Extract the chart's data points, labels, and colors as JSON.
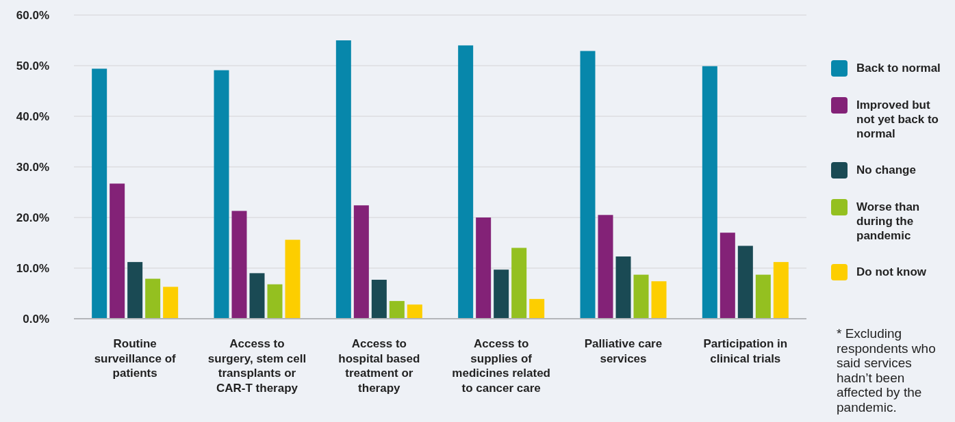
{
  "chart_data": {
    "type": "bar",
    "categories": [
      "Routine surveillance of patients",
      "Access to surgery, stem cell transplants or CAR-T therapy",
      "Access to hospital based treatment or therapy",
      "Access to supplies of medicines related to cancer care",
      "Palliative care services",
      "Participation in clinical trials"
    ],
    "series": [
      {
        "name": "Back to normal",
        "color": "#0787ab",
        "values": [
          49.4,
          49.1,
          55.0,
          54.0,
          52.9,
          49.9
        ]
      },
      {
        "name": "Improved but not yet back to normal",
        "color": "#832277",
        "values": [
          26.7,
          21.3,
          22.4,
          20.0,
          20.5,
          17.0
        ]
      },
      {
        "name": "No change",
        "color": "#1a4a54",
        "values": [
          11.2,
          9.0,
          7.7,
          9.7,
          12.3,
          14.4
        ]
      },
      {
        "name": "Worse than during the pandemic",
        "color": "#94c020",
        "values": [
          7.9,
          6.8,
          3.5,
          14.0,
          8.7,
          8.7
        ]
      },
      {
        "name": "Do not know",
        "color": "#fdce00",
        "values": [
          6.3,
          15.6,
          2.8,
          3.9,
          7.4,
          11.2
        ]
      }
    ],
    "ylim": [
      0,
      60
    ],
    "yticks": [
      {
        "value": 0,
        "label": "0.0%"
      },
      {
        "value": 10,
        "label": "10.0%"
      },
      {
        "value": 20,
        "label": "20.0%"
      },
      {
        "value": 30,
        "label": "30.0%"
      },
      {
        "value": 40,
        "label": "40.0%"
      },
      {
        "value": 50,
        "label": "50.0%"
      },
      {
        "value": 60,
        "label": "60.0%"
      }
    ],
    "grid": "y",
    "legend": "right",
    "annotations": [
      "* Excluding respondents who said services hadn’t been affected by the pandemic."
    ]
  }
}
